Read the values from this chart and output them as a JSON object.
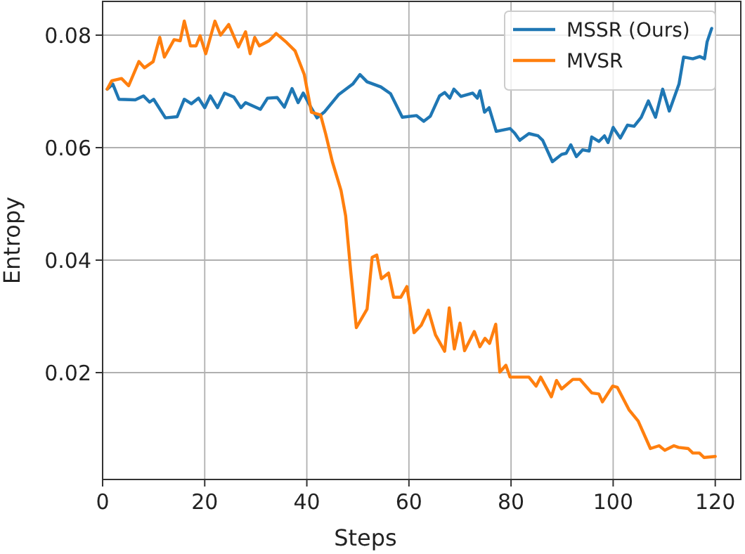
{
  "chart_data": {
    "type": "line",
    "xlabel": "Steps",
    "ylabel": "Entropy",
    "xlim": [
      0,
      125
    ],
    "ylim": [
      0.001,
      0.086
    ],
    "xticks": [
      0,
      20,
      40,
      60,
      80,
      100,
      120
    ],
    "yticks": [
      0.02,
      0.04,
      0.06,
      0.08
    ],
    "grid": true,
    "legend": "top right",
    "line_style": "solid",
    "marker": "none",
    "series": [
      {
        "name": "MSSR (Ours)",
        "color": "#1f77b4",
        "x": [
          0.9,
          2,
          3.2,
          6.4,
          8,
          9.2,
          10,
          12.3,
          14.6,
          16,
          17.4,
          18.8,
          20,
          21.1,
          22.5,
          23.9,
          25.7,
          27.1,
          28,
          30.9,
          32.3,
          34.2,
          35.6,
          37.1,
          38.3,
          39.3,
          40.6,
          42,
          43.4,
          46.2,
          49,
          50.4,
          51.8,
          54.5,
          56.4,
          58.7,
          61.5,
          62.9,
          64.2,
          66,
          67,
          68,
          68.8,
          70.2,
          72.5,
          73.4,
          73.9,
          74.8,
          75.7,
          77.1,
          79.8,
          80.7,
          81.7,
          83.5,
          85.3,
          86.2,
          88.1,
          89.9,
          90.8,
          91.7,
          92.8,
          94,
          95.3,
          95.8,
          97.2,
          98.3,
          99,
          100,
          101.4,
          102.8,
          104.1,
          105.5,
          106.9,
          108.3,
          109.7,
          111,
          112.9,
          113.8,
          115.6,
          117,
          117.9,
          118.4,
          119.3
        ],
        "values": [
          0.0704,
          0.0713,
          0.0686,
          0.0685,
          0.0692,
          0.0681,
          0.0686,
          0.0653,
          0.0655,
          0.0686,
          0.0678,
          0.0688,
          0.0671,
          0.0692,
          0.0671,
          0.0697,
          0.069,
          0.0671,
          0.068,
          0.0668,
          0.0688,
          0.0689,
          0.0672,
          0.0705,
          0.068,
          0.0697,
          0.0675,
          0.0653,
          0.0663,
          0.0694,
          0.0713,
          0.073,
          0.0717,
          0.0708,
          0.0696,
          0.0654,
          0.0657,
          0.0647,
          0.0656,
          0.0692,
          0.0698,
          0.0688,
          0.0704,
          0.0691,
          0.0697,
          0.0688,
          0.0701,
          0.0663,
          0.0671,
          0.0629,
          0.0634,
          0.0626,
          0.0613,
          0.0625,
          0.0621,
          0.0613,
          0.0575,
          0.0588,
          0.059,
          0.0605,
          0.0584,
          0.0596,
          0.0594,
          0.0619,
          0.0611,
          0.0621,
          0.0609,
          0.0636,
          0.0617,
          0.064,
          0.0638,
          0.0654,
          0.0683,
          0.0654,
          0.0704,
          0.0665,
          0.0713,
          0.0761,
          0.0758,
          0.0762,
          0.0758,
          0.0788,
          0.0812
        ]
      },
      {
        "name": "MVSR",
        "color": "#ff7f0e",
        "x": [
          0.9,
          1.8,
          3.7,
          5.1,
          7.1,
          8.2,
          9.9,
          11.2,
          12.1,
          14,
          15.2,
          16,
          17.2,
          18.3,
          19.1,
          20.2,
          22,
          23.1,
          24.7,
          26.6,
          28,
          28.9,
          29.8,
          30.7,
          32.6,
          34,
          35.8,
          37.7,
          39.5,
          40.9,
          42.7,
          43.7,
          45,
          46.7,
          47.6,
          48.6,
          49.7,
          51.8,
          52.8,
          53.7,
          54.6,
          56,
          57,
          58.4,
          59.6,
          61,
          62.4,
          63.8,
          65.2,
          67,
          67.9,
          68.9,
          70,
          70.9,
          72.8,
          73.9,
          74.9,
          75.8,
          77,
          77.8,
          79,
          79.8,
          83.5,
          84.9,
          85.8,
          87.9,
          88.9,
          89.9,
          92.1,
          93.5,
          95.8,
          97.2,
          97.9,
          99.9,
          100.8,
          103.1,
          104.9,
          107.3,
          109,
          110.1,
          111.9,
          112.8,
          114.7,
          115.6,
          116.9,
          117.8,
          120
        ],
        "values": [
          0.0704,
          0.0719,
          0.0723,
          0.071,
          0.0753,
          0.0742,
          0.0753,
          0.0796,
          0.0761,
          0.0792,
          0.079,
          0.0825,
          0.0781,
          0.0781,
          0.0799,
          0.0767,
          0.0825,
          0.08,
          0.0819,
          0.0779,
          0.0806,
          0.0767,
          0.0796,
          0.0781,
          0.079,
          0.0803,
          0.0789,
          0.0772,
          0.073,
          0.0663,
          0.0658,
          0.0624,
          0.0575,
          0.0524,
          0.0479,
          0.038,
          0.028,
          0.0313,
          0.0405,
          0.0409,
          0.0367,
          0.0377,
          0.0334,
          0.0334,
          0.0353,
          0.0271,
          0.0284,
          0.0311,
          0.0267,
          0.0238,
          0.0315,
          0.0242,
          0.0288,
          0.0239,
          0.0273,
          0.0246,
          0.0261,
          0.0252,
          0.0286,
          0.0201,
          0.0213,
          0.0192,
          0.0192,
          0.0176,
          0.0192,
          0.0157,
          0.0186,
          0.0171,
          0.0188,
          0.0188,
          0.0164,
          0.0162,
          0.0148,
          0.0176,
          0.0174,
          0.0134,
          0.0114,
          0.0065,
          0.007,
          0.0062,
          0.007,
          0.0067,
          0.0065,
          0.0057,
          0.0057,
          0.0049,
          0.0051
        ]
      }
    ]
  }
}
